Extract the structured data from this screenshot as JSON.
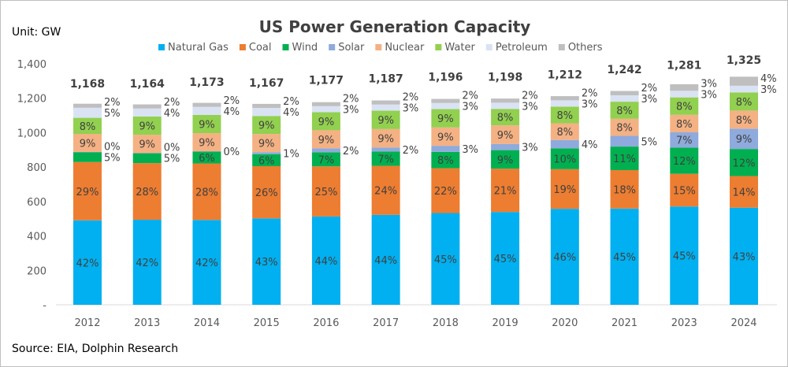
{
  "chart_data": {
    "type": "bar",
    "stacked": true,
    "title": "US Power Generation Capacity",
    "unit_label": "Unit: GW",
    "source": "Source: EIA, Dolphin Research",
    "ylim": [
      0,
      1400
    ],
    "yticks": [
      "-",
      "200",
      "400",
      "600",
      "800",
      "1,000",
      "1,200",
      "1,400"
    ],
    "grid": false,
    "legend_position": "top",
    "categories": [
      "2012",
      "2013",
      "2014",
      "2015",
      "2016",
      "2017",
      "2018",
      "2019",
      "2020",
      "2021",
      "2023",
      "2024"
    ],
    "totals": [
      1168,
      1164,
      1173,
      1167,
      1177,
      1187,
      1196,
      1198,
      1212,
      1242,
      1281,
      1325
    ],
    "total_labels": [
      "1,168",
      "1,164",
      "1,173",
      "1,167",
      "1,177",
      "1,187",
      "1,196",
      "1,198",
      "1,212",
      "1,242",
      "1,281",
      "1,325"
    ],
    "series": [
      {
        "name": "Natural Gas",
        "color": "#00b0f0",
        "share_pct": [
          42,
          42,
          42,
          43,
          44,
          44,
          45,
          45,
          46,
          45,
          45,
          43
        ]
      },
      {
        "name": "Coal",
        "color": "#ed7d31",
        "share_pct": [
          29,
          28,
          28,
          26,
          25,
          24,
          22,
          21,
          19,
          18,
          15,
          14
        ]
      },
      {
        "name": "Wind",
        "color": "#00b050",
        "share_pct": [
          5,
          5,
          6,
          6,
          7,
          7,
          8,
          9,
          10,
          11,
          12,
          12
        ]
      },
      {
        "name": "Solar",
        "color": "#8faadc",
        "share_pct": [
          0,
          0,
          0,
          1,
          2,
          2,
          3,
          3,
          4,
          5,
          7,
          9
        ]
      },
      {
        "name": "Nuclear",
        "color": "#f4b183",
        "share_pct": [
          9,
          9,
          9,
          9,
          9,
          9,
          9,
          9,
          8,
          8,
          8,
          8
        ]
      },
      {
        "name": "Water",
        "color": "#92d050",
        "share_pct": [
          8,
          9,
          9,
          9,
          9,
          9,
          9,
          8,
          8,
          8,
          8,
          8
        ]
      },
      {
        "name": "Petroleum",
        "color": "#dae3f3",
        "share_pct": [
          5,
          4,
          4,
          4,
          3,
          3,
          3,
          3,
          3,
          3,
          3,
          3
        ]
      },
      {
        "name": "Others",
        "color": "#bfbfbf",
        "share_pct": [
          2,
          2,
          2,
          2,
          2,
          2,
          2,
          2,
          2,
          2,
          3,
          4
        ]
      }
    ]
  }
}
